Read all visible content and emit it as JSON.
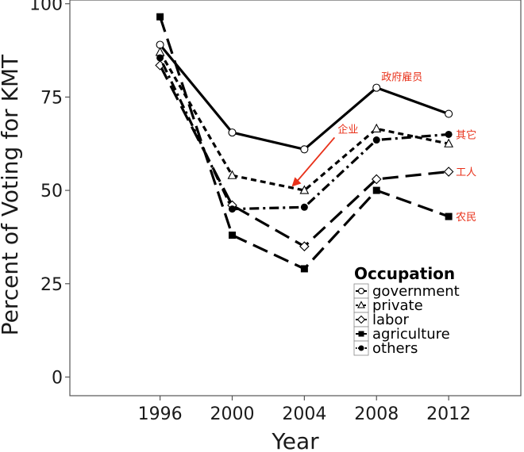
{
  "chart_data": {
    "type": "line",
    "xlabel": "Year",
    "ylabel": "Percent of Voting for KMT",
    "x": [
      1996,
      2000,
      2004,
      2008,
      2012
    ],
    "xlim": [
      1991,
      2016
    ],
    "ylim": [
      -5,
      101
    ],
    "yticks": [
      0,
      25,
      50,
      75,
      100
    ],
    "grid": false,
    "legend": {
      "title": "Occupation",
      "position": "bottom-right"
    },
    "series": [
      {
        "name": "government",
        "marker": "open-circle",
        "line": "solid",
        "values": [
          89,
          65.5,
          61,
          77.5,
          70.5
        ]
      },
      {
        "name": "private",
        "marker": "open-triangle",
        "line": "dashed",
        "values": [
          87,
          54,
          50,
          66.5,
          62.5
        ]
      },
      {
        "name": "labor",
        "marker": "open-diamond",
        "line": "long-dash",
        "values": [
          83.5,
          46,
          35,
          53,
          55
        ]
      },
      {
        "name": "agriculture",
        "marker": "filled-square",
        "line": "long-dash",
        "values": [
          96.5,
          38,
          29,
          50,
          43
        ]
      },
      {
        "name": "others",
        "marker": "filled-circle",
        "line": "dot-dash",
        "values": [
          85.5,
          45,
          45.5,
          63.5,
          65
        ]
      }
    ],
    "annotations": [
      {
        "text": "政府雇员",
        "series": "government"
      },
      {
        "text": "其它",
        "series": "others"
      },
      {
        "text": "工人",
        "series": "labor"
      },
      {
        "text": "农民",
        "series": "agriculture"
      },
      {
        "text": "企业",
        "series": "private",
        "arrow": true
      }
    ],
    "colors": {
      "lines": "#000000",
      "annotation": "#e8311a",
      "panel_border": "#555555"
    }
  }
}
